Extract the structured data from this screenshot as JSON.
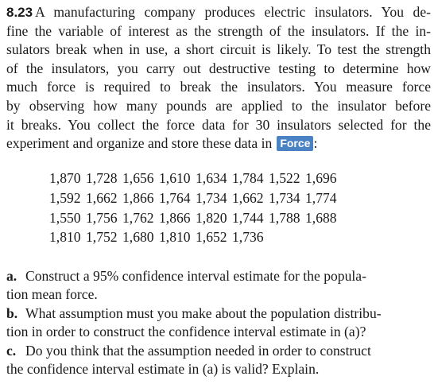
{
  "problem": {
    "number": "8.23",
    "lines": [
      "A manufacturing company produces electric insulators. You de-",
      "fine the variable of interest as the strength of the insulators. If the in-",
      "sulators break when in use, a short circuit is likely. To test the strength",
      "of the insulators, you carry out destructive testing to determine how",
      "much force is required to break the insulators. You measure force",
      "by observing how many pounds are applied to the insulator before",
      "it breaks. You collect the force data for 30 insulators selected for the",
      "experiment and organize and store these data in"
    ],
    "file_tag": "Force",
    "colon": ":",
    "tag_color": "#4a82c3"
  },
  "data_rows": [
    [
      "1,870",
      "1,728",
      "1,656",
      "1,610",
      "1,634",
      "1,784",
      "1,522",
      "1,696"
    ],
    [
      "1,592",
      "1,662",
      "1,866",
      "1,764",
      "1,734",
      "1,662",
      "1,734",
      "1,774"
    ],
    [
      "1,550",
      "1,756",
      "1,762",
      "1,866",
      "1,820",
      "1,744",
      "1,788",
      "1,688"
    ],
    [
      "1,810",
      "1,752",
      "1,680",
      "1,810",
      "1,652",
      "1,736"
    ]
  ],
  "questions": [
    {
      "letter": "a.",
      "lines": [
        "Construct a 95% confidence interval estimate for the popula-",
        "tion mean force."
      ]
    },
    {
      "letter": "b.",
      "lines": [
        "What assumption must you make about the population distribu-",
        "tion in order to construct the confidence interval estimate in (a)?"
      ]
    },
    {
      "letter": "c.",
      "lines": [
        "Do you think that the assumption needed in order to construct",
        "the confidence interval estimate in (a) is valid? Explain."
      ]
    }
  ]
}
